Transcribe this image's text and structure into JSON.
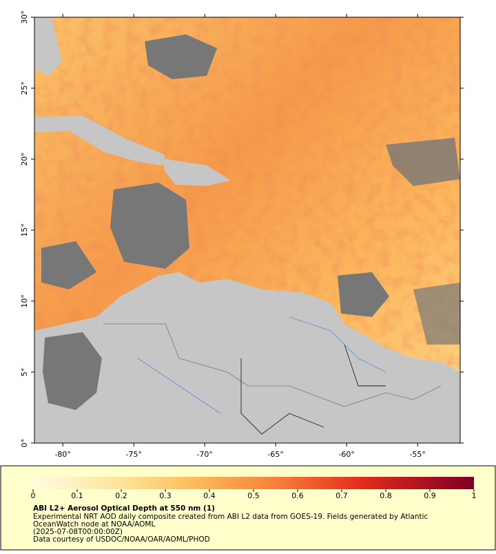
{
  "map": {
    "latlim": [
      0,
      30
    ],
    "lonlim": [
      -82,
      -52
    ],
    "lat_ticks": [
      {
        "value": 0,
        "label": "0°"
      },
      {
        "value": 5,
        "label": "5°"
      },
      {
        "value": 10,
        "label": "10°"
      },
      {
        "value": 15,
        "label": "15°"
      },
      {
        "value": 20,
        "label": "20°"
      },
      {
        "value": 25,
        "label": "25°"
      },
      {
        "value": 30,
        "label": "30°"
      }
    ],
    "lon_ticks": [
      {
        "value": -80,
        "label": "-80°"
      },
      {
        "value": -75,
        "label": "-75°"
      },
      {
        "value": -70,
        "label": "-70°"
      },
      {
        "value": -65,
        "label": "-65°"
      },
      {
        "value": -60,
        "label": "-60°"
      },
      {
        "value": -55,
        "label": "-55°"
      }
    ]
  },
  "colorbar": {
    "lim": [
      0,
      1
    ],
    "ticks": [
      0,
      0.1,
      0.2,
      0.3,
      0.4,
      0.5,
      0.6,
      0.7,
      0.8,
      0.9,
      1
    ]
  },
  "caption": {
    "title": "ABI L2+ Aerosol Optical Depth at 550 nm (1)",
    "lines": [
      "Experimental NRT AOD daily composite created from ABI L2 data from GOES-19. Fields generated by Atlantic",
      "OceanWatch node at NOAA/AOML",
      "(2025-07-08T00:00:00Z)",
      "Data courtesy of USDOC/NOAA/OAR/AOML/PHOD"
    ]
  }
}
